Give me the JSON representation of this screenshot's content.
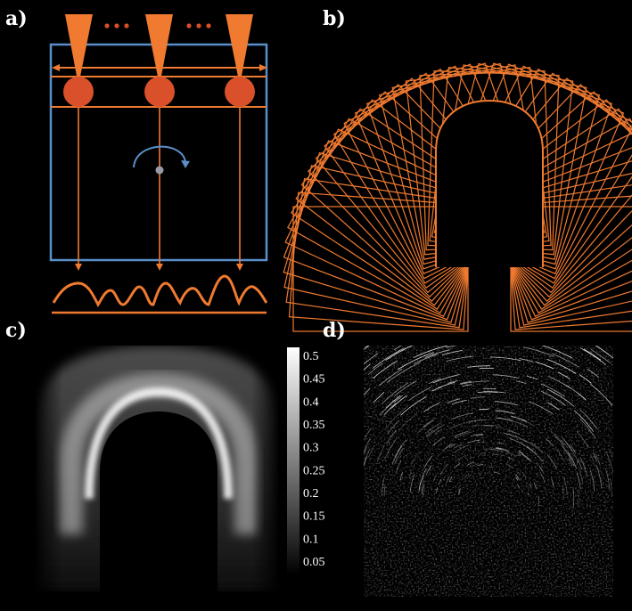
{
  "panels": {
    "a": {
      "label": "a)"
    },
    "b": {
      "label": "b)"
    },
    "c": {
      "label": "c)"
    },
    "d": {
      "label": "d)"
    }
  },
  "colorbar": {
    "ticks": [
      "0.5",
      "0.45",
      "0.4",
      "0.35",
      "0.3",
      "0.25",
      "0.2",
      "0.15",
      "0.1",
      "0.05"
    ]
  },
  "colors": {
    "accent": "#f07a30",
    "source": "#d9502a",
    "frame": "#5b8fc9",
    "background": "#000000"
  }
}
